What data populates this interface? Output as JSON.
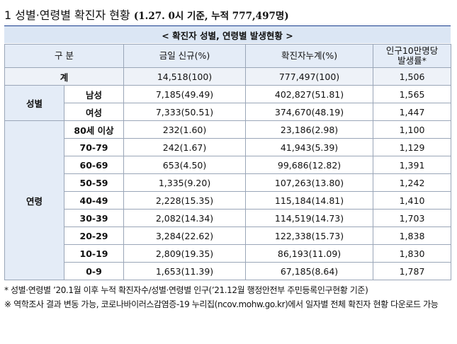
{
  "title": {
    "number": "1",
    "main": "성별·연령별 확진자 현황",
    "sub": "(1.27. 0시 기준, 누적 777,497명)"
  },
  "caption": "< 확진자 성별, 연령별 발생현황 >",
  "headers": {
    "category": "구 분",
    "new": "금일 신규(%)",
    "cumulative": "확진자누계(%)",
    "rate_line1": "인구10만명당",
    "rate_line2": "발생률*"
  },
  "total": {
    "label": "계",
    "new": "14,518(100)",
    "cum": "777,497(100)",
    "rate": "1,506"
  },
  "sex": {
    "group": "성별",
    "rows": [
      {
        "label": "남성",
        "new": "7,185(49.49)",
        "cum": "402,827(51.81)",
        "rate": "1,565"
      },
      {
        "label": "여성",
        "new": "7,333(50.51)",
        "cum": "374,670(48.19)",
        "rate": "1,447"
      }
    ]
  },
  "age": {
    "group": "연령",
    "rows": [
      {
        "label": "80세 이상",
        "new": "232(1.60)",
        "cum": "23,186(2.98)",
        "rate": "1,100"
      },
      {
        "label": "70-79",
        "new": "242(1.67)",
        "cum": "41,943(5.39)",
        "rate": "1,129"
      },
      {
        "label": "60-69",
        "new": "653(4.50)",
        "cum": "99,686(12.82)",
        "rate": "1,391"
      },
      {
        "label": "50-59",
        "new": "1,335(9.20)",
        "cum": "107,263(13.80)",
        "rate": "1,242"
      },
      {
        "label": "40-49",
        "new": "2,228(15.35)",
        "cum": "115,184(14.81)",
        "rate": "1,410"
      },
      {
        "label": "30-39",
        "new": "2,082(14.34)",
        "cum": "114,519(14.73)",
        "rate": "1,703"
      },
      {
        "label": "20-29",
        "new": "3,284(22.62)",
        "cum": "122,338(15.73)",
        "rate": "1,838"
      },
      {
        "label": "10-19",
        "new": "2,809(19.35)",
        "cum": "86,193(11.09)",
        "rate": "1,830"
      },
      {
        "label": "0-9",
        "new": "1,653(11.39)",
        "cum": "67,185(8.64)",
        "rate": "1,787"
      }
    ]
  },
  "notes": {
    "note1": "* 성별·연령별 ’20.1월 이후 누적 확진자수/성별·연령별 인구(’21.12월 행정안전부 주민등록인구현황 기준)",
    "note2": "※ 역학조사 결과 변동 가능, 코로나바이러스감염증-19 누리집(ncov.mohw.go.kr)에서 일자별 전체 확진자 현황 다운로드 가능"
  }
}
